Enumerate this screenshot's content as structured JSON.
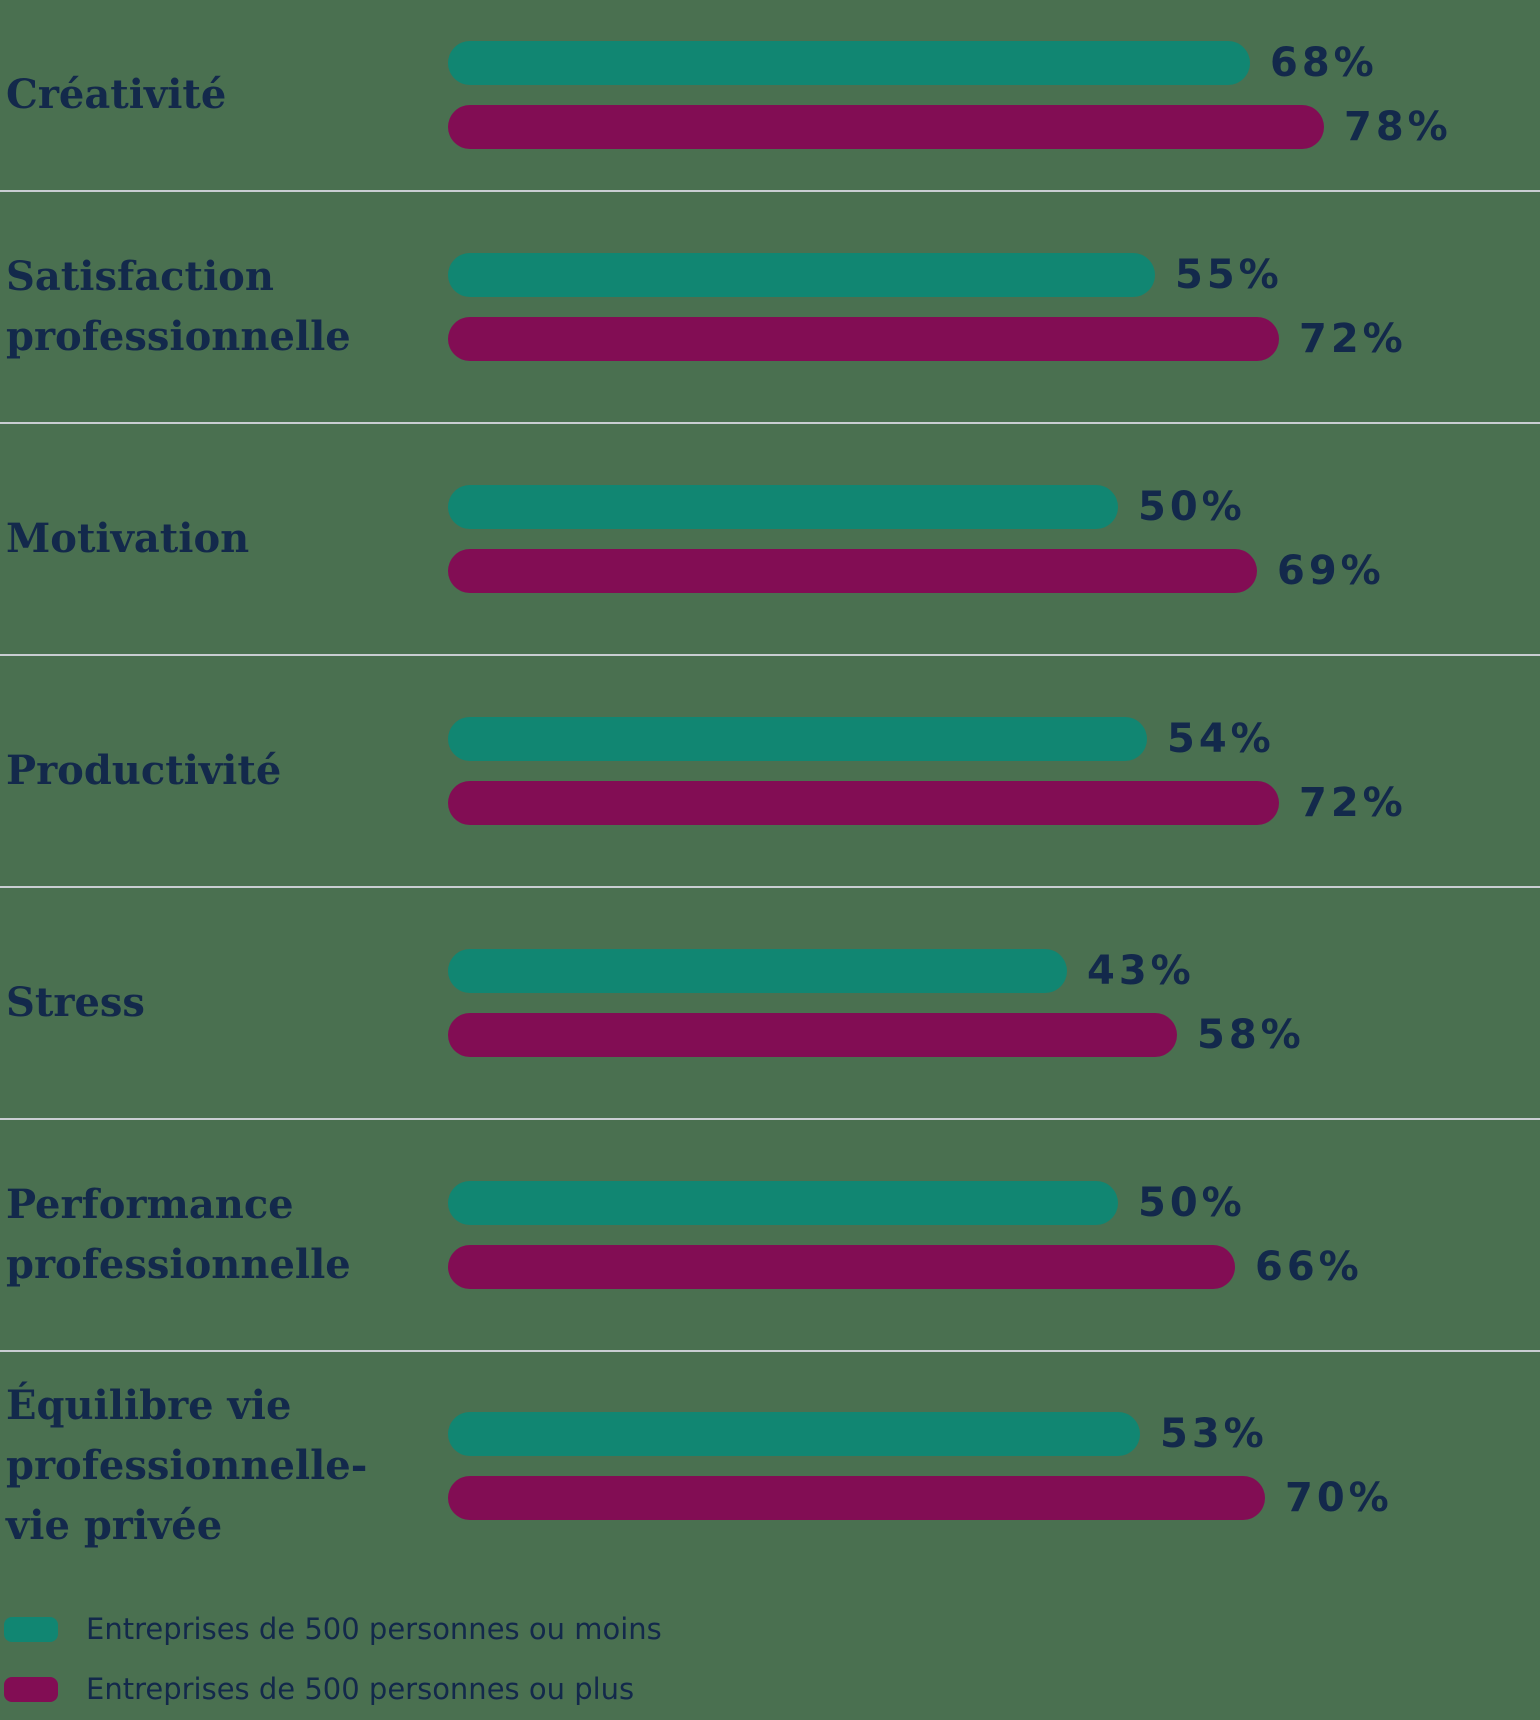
{
  "chart_data": {
    "type": "bar",
    "orientation": "horizontal",
    "title": "",
    "value_suffix": "%",
    "categories": [
      "Créativité",
      "Satisfaction professionnelle",
      "Motivation",
      "Productivité",
      "Stress",
      "Performance professionnelle",
      "Équilibre vie professionnelle-vie privée"
    ],
    "series": [
      {
        "name": "Entreprises de 500 personnes ou moins",
        "color": "#118672",
        "values": [
          68,
          55,
          50,
          54,
          43,
          50,
          53
        ]
      },
      {
        "name": "Entreprises de 500 personnes ou plus",
        "color": "#820D54",
        "values": [
          78,
          72,
          69,
          72,
          58,
          66,
          70
        ]
      }
    ],
    "legend_position": "bottom",
    "grid": "row-dividers",
    "colors": {
      "background": "#4A7050",
      "text": "#13294B",
      "divider": "#C9CED2"
    }
  }
}
